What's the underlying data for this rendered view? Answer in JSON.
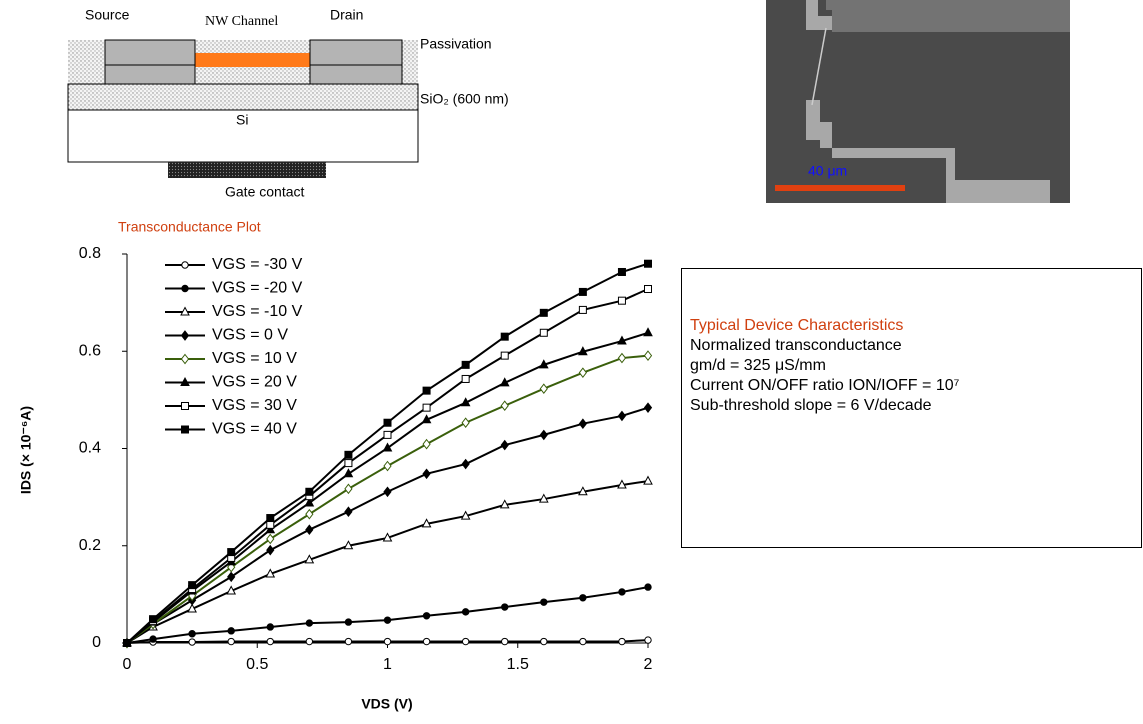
{
  "diagram": {
    "source": "Source",
    "channel": "NW Channel",
    "drain": "Drain",
    "passivation": "Passivation",
    "oxide": "SiO₂ (600 nm)",
    "substrate": "Si",
    "gate": "Gate contact"
  },
  "sem_image": {
    "scale_label": "40 μm"
  },
  "chart_data": {
    "type": "line",
    "title": "Transconductance Plot",
    "x_label": "VDS (V)",
    "y_label": "IDS (× 10⁻⁶A)",
    "x": [
      0,
      0.1,
      0.25,
      0.4,
      0.55,
      0.7,
      0.85,
      1,
      1.15,
      1.3,
      1.45,
      1.6,
      1.75,
      1.9,
      2
    ],
    "xlim": [
      0,
      2
    ],
    "xticks": [
      0,
      0.5,
      1,
      1.5,
      2
    ],
    "ylim": [
      0,
      0.8
    ],
    "yticks": [
      0,
      0.2,
      0.4,
      0.6,
      0.8
    ],
    "series": [
      {
        "name": "VGS = -30 V",
        "color": "#000000",
        "marker": "circle-open",
        "values": [
          0,
          0.002,
          0.002,
          0.003,
          0.003,
          0.003,
          0.003,
          0.003,
          0.003,
          0.003,
          0.003,
          0.003,
          0.003,
          0.003,
          0.006
        ]
      },
      {
        "name": "VGS = -20 V",
        "color": "#000000",
        "marker": "circle",
        "values": [
          0,
          0.008,
          0.019,
          0.025,
          0.033,
          0.041,
          0.043,
          0.047,
          0.056,
          0.064,
          0.074,
          0.084,
          0.093,
          0.105,
          0.115
        ]
      },
      {
        "name": "VGS = -10 V",
        "color": "#000000",
        "marker": "triangle-open",
        "values": [
          0,
          0.033,
          0.07,
          0.107,
          0.142,
          0.171,
          0.2,
          0.216,
          0.245,
          0.261,
          0.284,
          0.296,
          0.311,
          0.325,
          0.333
        ]
      },
      {
        "name": "VGS = 0 V",
        "color": "#000000",
        "marker": "diamond",
        "values": [
          0,
          0.039,
          0.088,
          0.136,
          0.191,
          0.233,
          0.27,
          0.311,
          0.348,
          0.368,
          0.407,
          0.428,
          0.451,
          0.467,
          0.484
        ]
      },
      {
        "name": "VGS = 10 V",
        "color": "#3a5f0b",
        "marker": "diamond-open",
        "values": [
          0,
          0.039,
          0.097,
          0.156,
          0.214,
          0.265,
          0.317,
          0.364,
          0.409,
          0.453,
          0.488,
          0.523,
          0.556,
          0.586,
          0.591
        ]
      },
      {
        "name": "VGS = 20 V",
        "color": "#000000",
        "marker": "triangle",
        "values": [
          0,
          0.043,
          0.107,
          0.167,
          0.233,
          0.288,
          0.348,
          0.401,
          0.459,
          0.494,
          0.535,
          0.572,
          0.599,
          0.621,
          0.638
        ]
      },
      {
        "name": "VGS = 30 V",
        "color": "#000000",
        "marker": "square-open",
        "values": [
          0,
          0.045,
          0.111,
          0.175,
          0.243,
          0.302,
          0.37,
          0.428,
          0.484,
          0.543,
          0.591,
          0.638,
          0.685,
          0.704,
          0.728
        ]
      },
      {
        "name": "VGS = 40 V",
        "color": "#000000",
        "marker": "square",
        "values": [
          0,
          0.049,
          0.119,
          0.187,
          0.257,
          0.311,
          0.387,
          0.453,
          0.519,
          0.572,
          0.63,
          0.679,
          0.722,
          0.763,
          0.78
        ]
      }
    ]
  },
  "info_box": {
    "title": "Typical Device Characteristics",
    "lines": [
      "Normalized transconductance",
      "gm/d = 325 μS/mm",
      "Current ON/OFF ratio ION/IOFF = 10⁷",
      "Sub-threshold slope = 6 V/decade"
    ]
  }
}
